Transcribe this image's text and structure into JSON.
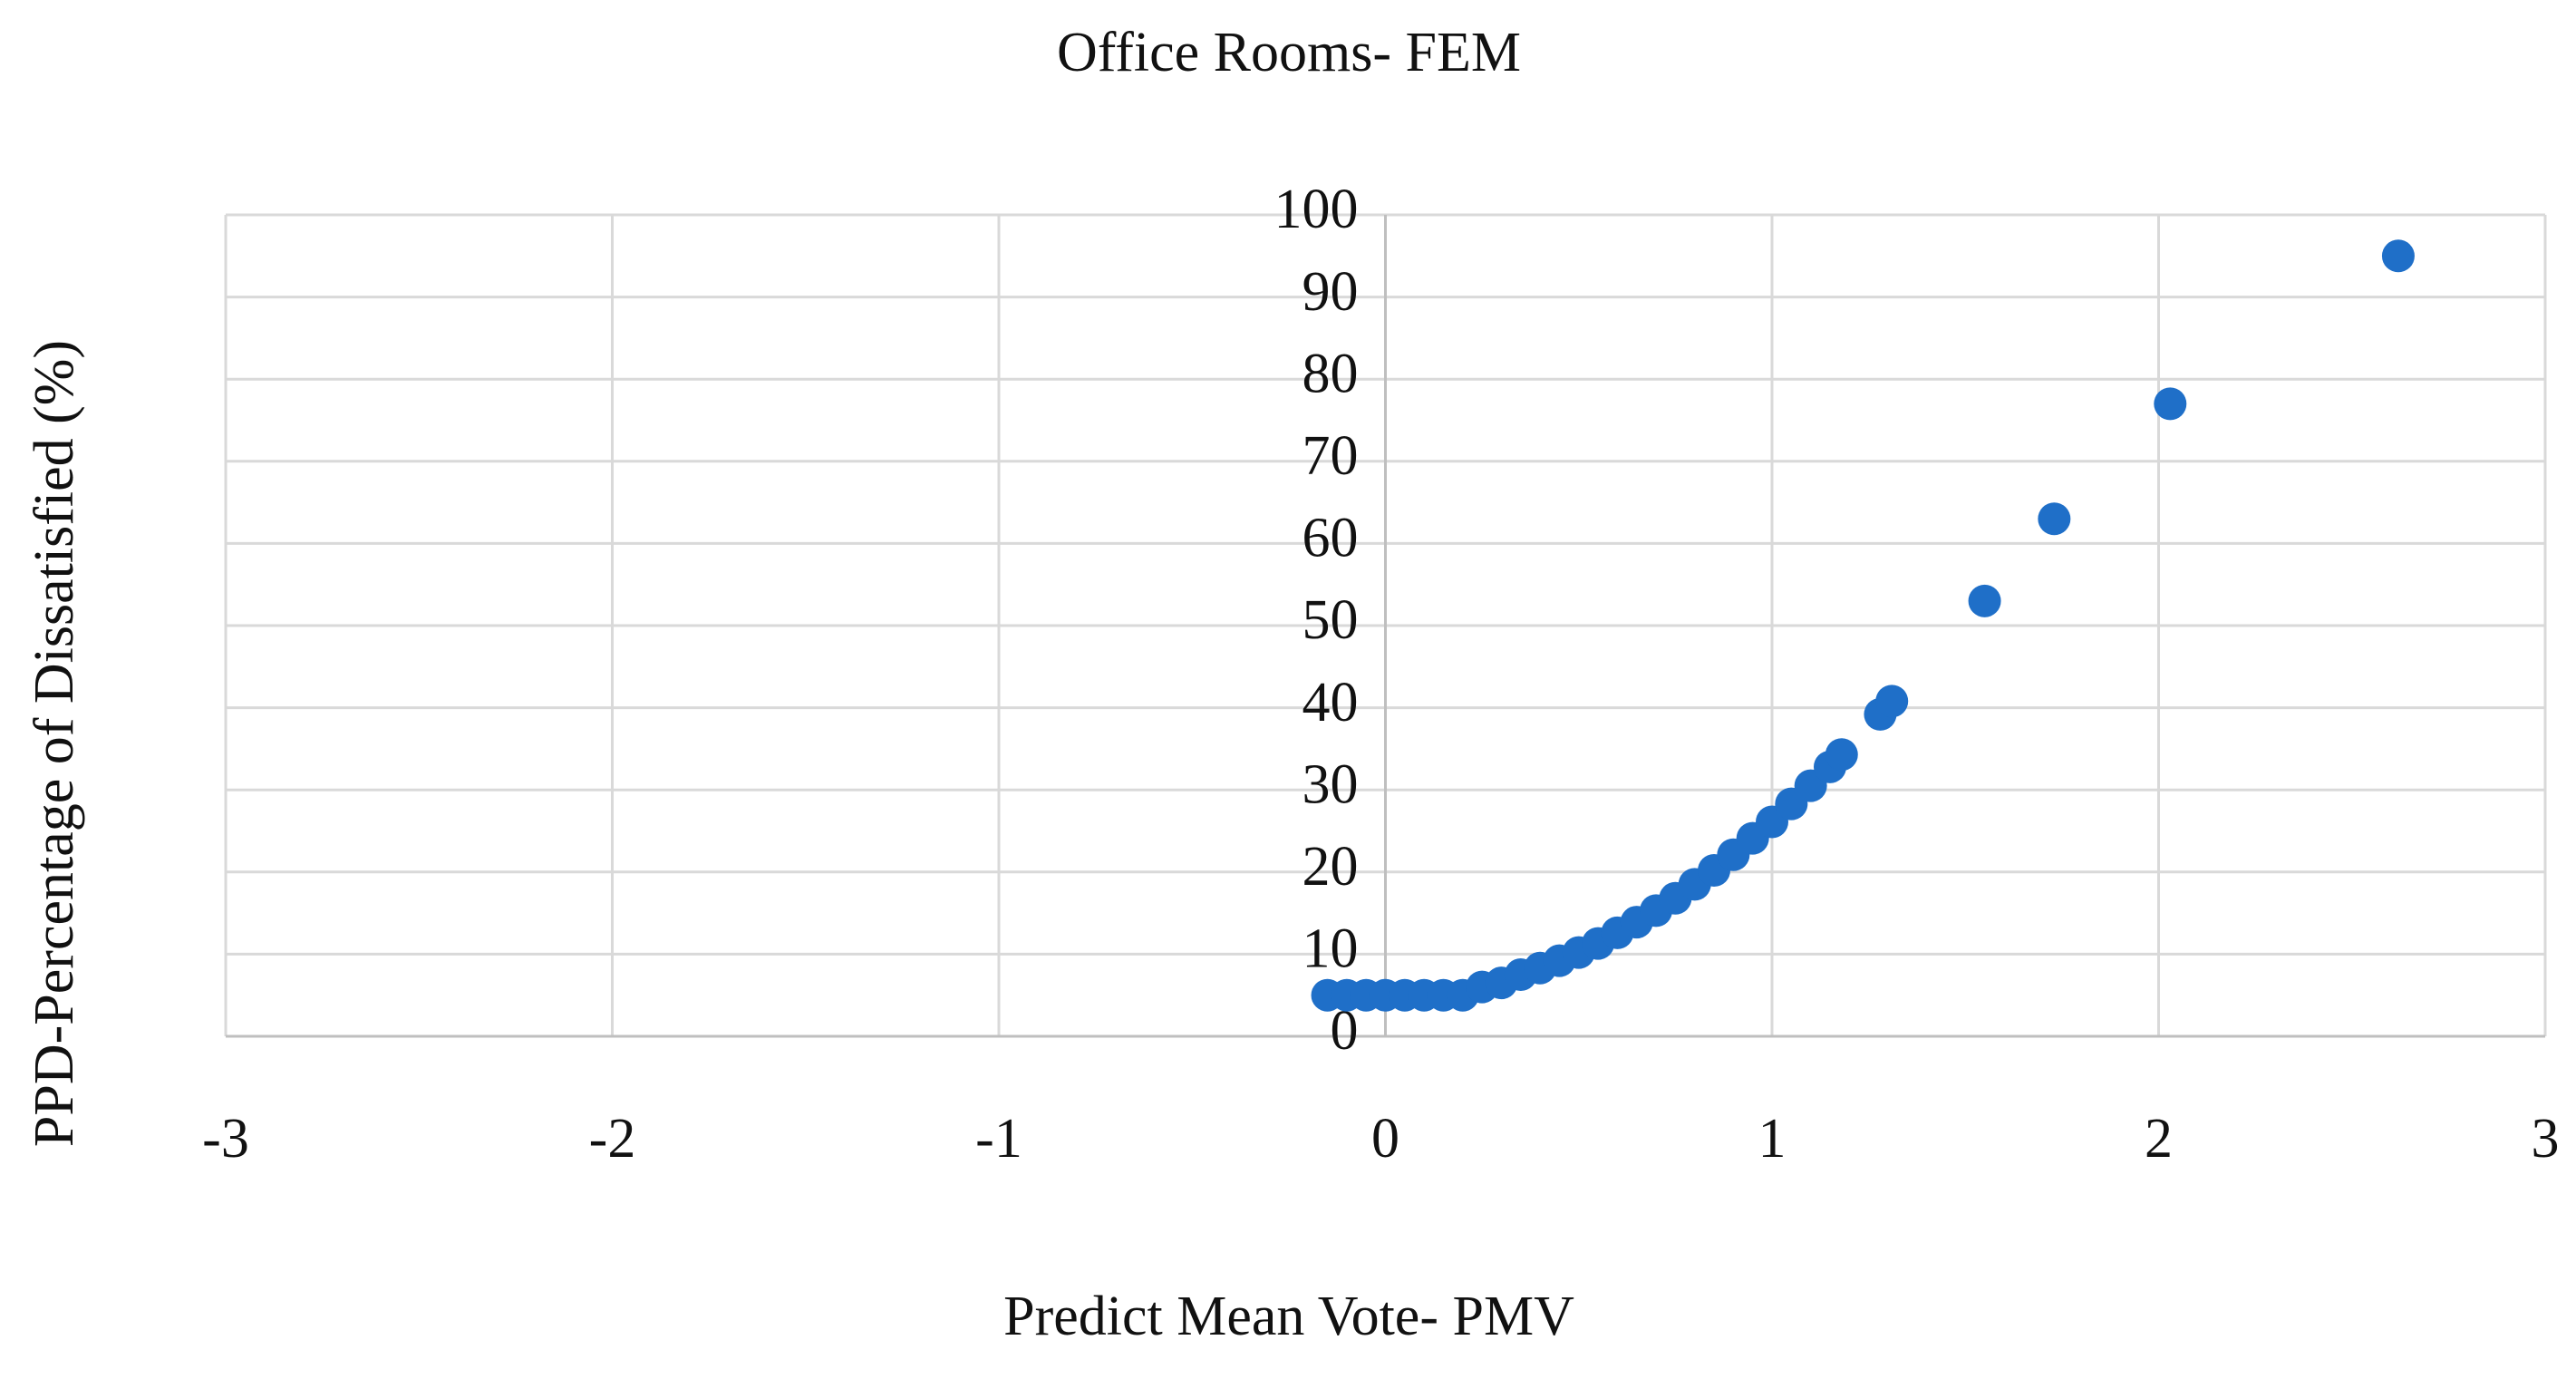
{
  "chart_data": {
    "type": "scatter",
    "title": "Office Rooms- FEM",
    "x_label": "Predict Mean Vote- PMV",
    "y_label": "PPD-Percentage of Dissatisfied (%)",
    "x": [
      -0.15,
      -0.1,
      -0.05,
      0,
      0.05,
      0.1,
      0.15,
      0.2,
      0.25,
      0.3,
      0.35,
      0.4,
      0.45,
      0.5,
      0.55,
      0.6,
      0.65,
      0.7,
      0.75,
      0.8,
      0.85,
      0.9,
      0.95,
      1.0,
      1.05,
      1.1,
      1.15,
      1.18,
      1.28,
      1.31,
      1.55,
      1.73,
      2.03,
      2.62
    ],
    "series": [
      {
        "color": "#1f6fc8",
        "values": [
          5,
          5,
          5,
          5,
          5,
          5,
          5,
          5,
          6,
          6.5,
          7.5,
          8.3,
          9.2,
          10.2,
          11.3,
          12.6,
          13.9,
          15.3,
          16.8,
          18.5,
          20.2,
          22.1,
          24.1,
          26.1,
          28.3,
          30.5,
          32.8,
          34.3,
          39.2,
          40.8,
          53,
          63,
          77,
          95
        ]
      }
    ],
    "xlim": [
      -3,
      3
    ],
    "xticks": [
      -3,
      -2,
      -1,
      0,
      1,
      2,
      3
    ],
    "ylim": [
      0,
      100
    ],
    "yticks": [
      0,
      10,
      20,
      30,
      40,
      50,
      60,
      70,
      80,
      90,
      100
    ],
    "grid": true
  }
}
